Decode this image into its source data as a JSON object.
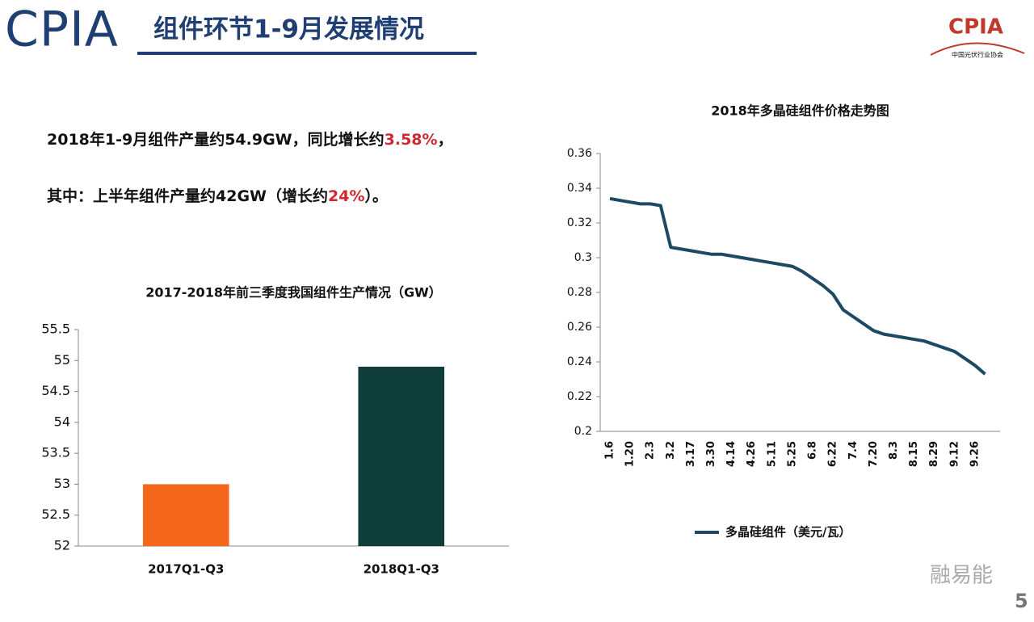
{
  "header": {
    "logo": "CPIA",
    "title": "组件环节1-9月发展情况",
    "badge": "CPIA",
    "badge_sub": "中国光伏行业协会"
  },
  "intro": [
    {
      "text": "2018年1-9月组件产量约54.9GW，同比增长约",
      "highlight": "3.58%",
      "tail": "，"
    },
    {
      "text": "其中：上半年组件产量约42GW（增长约",
      "highlight": "24%",
      "tail": "）。"
    }
  ],
  "chart_data": [
    {
      "type": "bar",
      "title": "2017-2018年前三季度我国组件生产情况（GW）",
      "categories": [
        "2017Q1-Q3",
        "2018Q1-Q3"
      ],
      "values": [
        53,
        54.9
      ],
      "colors": [
        "#f4661b",
        "#0f3d3a"
      ],
      "ylim": [
        52,
        55.5
      ],
      "yticks": [
        52,
        52.5,
        53,
        53.5,
        54,
        54.5,
        55,
        55.5
      ],
      "grid": false
    },
    {
      "type": "line",
      "title": "2018年多晶硅组件价格走势图",
      "categories": [
        "1.6",
        null,
        "1.20",
        null,
        "2.3",
        null,
        "3.2",
        null,
        "3.17",
        null,
        "3.30",
        null,
        "4.14",
        null,
        "4.26",
        null,
        "5.11",
        null,
        "5.25",
        null,
        "6.8",
        null,
        "6.22",
        null,
        "7.4",
        null,
        "7.20",
        null,
        "8.3",
        null,
        "8.15",
        null,
        "8.29",
        null,
        "9.12",
        null,
        "9.26",
        null
      ],
      "series": [
        {
          "name": "多晶硅组件（美元/瓦）",
          "color": "#1c4a63",
          "values": [
            0.334,
            0.333,
            0.332,
            0.331,
            0.331,
            0.33,
            0.306,
            0.305,
            0.304,
            0.303,
            0.302,
            0.302,
            0.301,
            0.3,
            0.299,
            0.298,
            0.297,
            0.296,
            0.295,
            0.292,
            0.288,
            0.284,
            0.279,
            0.27,
            0.266,
            0.262,
            0.258,
            0.256,
            0.255,
            0.254,
            0.253,
            0.252,
            0.25,
            0.248,
            0.246,
            0.242,
            0.238,
            0.233
          ]
        }
      ],
      "ylim": [
        0.2,
        0.36
      ],
      "yticks": [
        0.2,
        0.22,
        0.24,
        0.26,
        0.28,
        0.3,
        0.32,
        0.34,
        0.36
      ],
      "legend": "bottom",
      "grid": false
    }
  ],
  "watermark": "融易能",
  "page_number": "5"
}
